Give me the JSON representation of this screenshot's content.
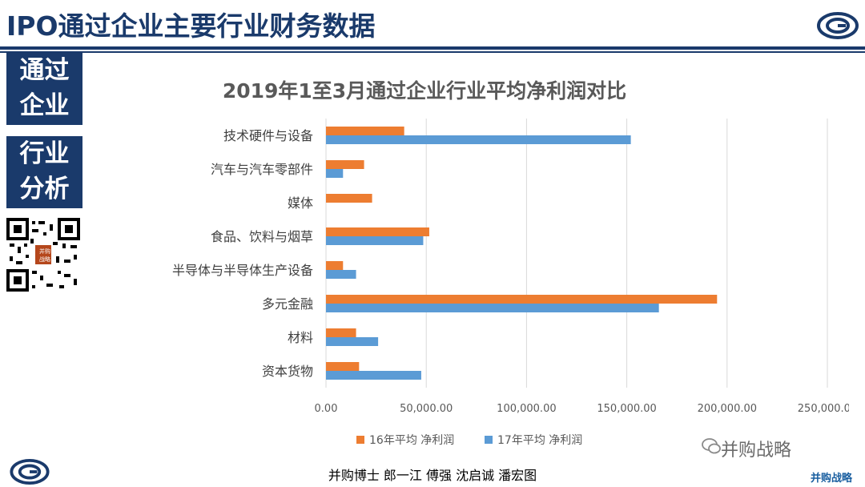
{
  "header": {
    "title": "IPO通过企业主要行业财务数据"
  },
  "sidebar": {
    "box1": [
      "通过",
      "企业"
    ],
    "box2": [
      "行业",
      "分析"
    ],
    "qr_caption": [
      "并购",
      "战略"
    ]
  },
  "footer": {
    "authors": "并购博士 郎一江 傅强 沈启诚 潘宏图"
  },
  "watermark": {
    "text": "并购战略",
    "corner": "并购战略"
  },
  "colors": {
    "navy": "#1a3a6b",
    "series16": "#ed7d31",
    "series17": "#5b9bd5"
  },
  "chart_data": {
    "type": "bar",
    "orientation": "horizontal",
    "title": "2019年1至3月通过企业行业平均净利润对比",
    "categories": [
      "技术硬件与设备",
      "汽车与汽车零部件",
      "媒体",
      "食品、饮料与烟草",
      "半导体与半导体生产设备",
      "多元金融",
      "材料",
      "资本货物"
    ],
    "series": [
      {
        "name": "16年平均 净利润",
        "color": "#ed7d31",
        "values": [
          39000,
          19000,
          23000,
          51500,
          8500,
          195000,
          15000,
          16500
        ]
      },
      {
        "name": "17年平均 净利润",
        "color": "#5b9bd5",
        "values": [
          152000,
          8500,
          null,
          48500,
          15000,
          166000,
          26000,
          47500
        ]
      }
    ],
    "xlim": [
      0,
      250000
    ],
    "xticks": [
      "0.00",
      "50,000.00",
      "100,000.00",
      "150,000.00",
      "200,000.00",
      "250,000.00"
    ],
    "grid": true,
    "legend": "bottom"
  }
}
